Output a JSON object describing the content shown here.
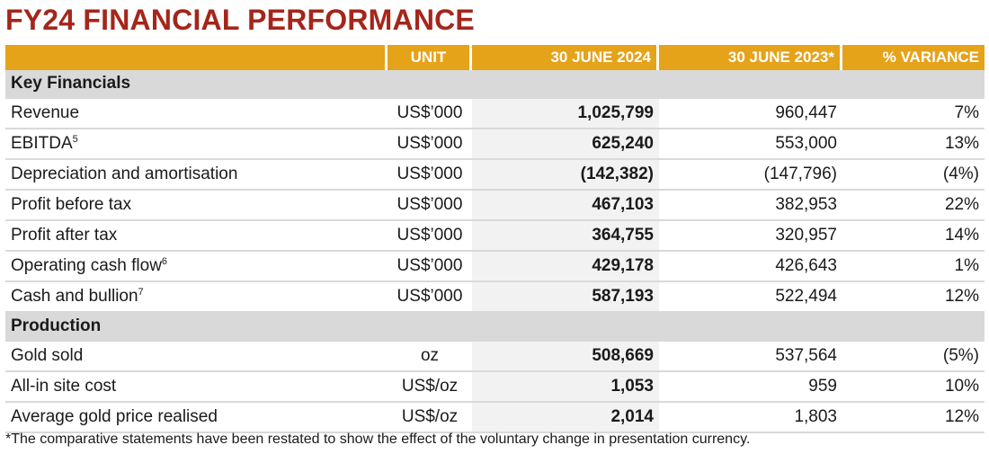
{
  "title": "FY24 FINANCIAL PERFORMANCE",
  "header": {
    "label": "",
    "unit": "UNIT",
    "current": "30 JUNE 2024",
    "previous": "30 JUNE 2023*",
    "variance": "% VARIANCE"
  },
  "sections": [
    {
      "name": "Key Financials",
      "rows": [
        {
          "label": "Revenue",
          "sup": "",
          "unit": "US$’000",
          "current": "1,025,799",
          "previous": "960,447",
          "variance": "7%"
        },
        {
          "label": "EBITDA",
          "sup": "5",
          "unit": "US$’000",
          "current": "625,240",
          "previous": "553,000",
          "variance": "13%"
        },
        {
          "label": "Depreciation and amortisation",
          "sup": "",
          "unit": "US$’000",
          "current": "(142,382)",
          "previous": "(147,796)",
          "variance": "(4%)"
        },
        {
          "label": "Profit before tax",
          "sup": "",
          "unit": "US$’000",
          "current": "467,103",
          "previous": "382,953",
          "variance": "22%"
        },
        {
          "label": "Profit after tax",
          "sup": "",
          "unit": "US$’000",
          "current": "364,755",
          "previous": "320,957",
          "variance": "14%"
        },
        {
          "label": "Operating cash flow",
          "sup": "6",
          "unit": "US$’000",
          "current": "429,178",
          "previous": "426,643",
          "variance": "1%"
        },
        {
          "label": "Cash and bullion",
          "sup": "7",
          "unit": "US$’000",
          "current": "587,193",
          "previous": "522,494",
          "variance": "12%"
        }
      ]
    },
    {
      "name": "Production",
      "rows": [
        {
          "label": "Gold sold",
          "sup": "",
          "unit": "oz",
          "current": "508,669",
          "previous": "537,564",
          "variance": "(5%)"
        },
        {
          "label": "All-in site cost",
          "sup": "",
          "unit": "US$/oz",
          "current": "1,053",
          "previous": "959",
          "variance": "10%"
        },
        {
          "label": "Average gold price realised",
          "sup": "",
          "unit": "US$/oz",
          "current": "2,014",
          "previous": "1,803",
          "variance": "12%"
        }
      ]
    }
  ],
  "footnote": "*The comparative statements have been restated to show the effect of the voluntary change in presentation currency."
}
